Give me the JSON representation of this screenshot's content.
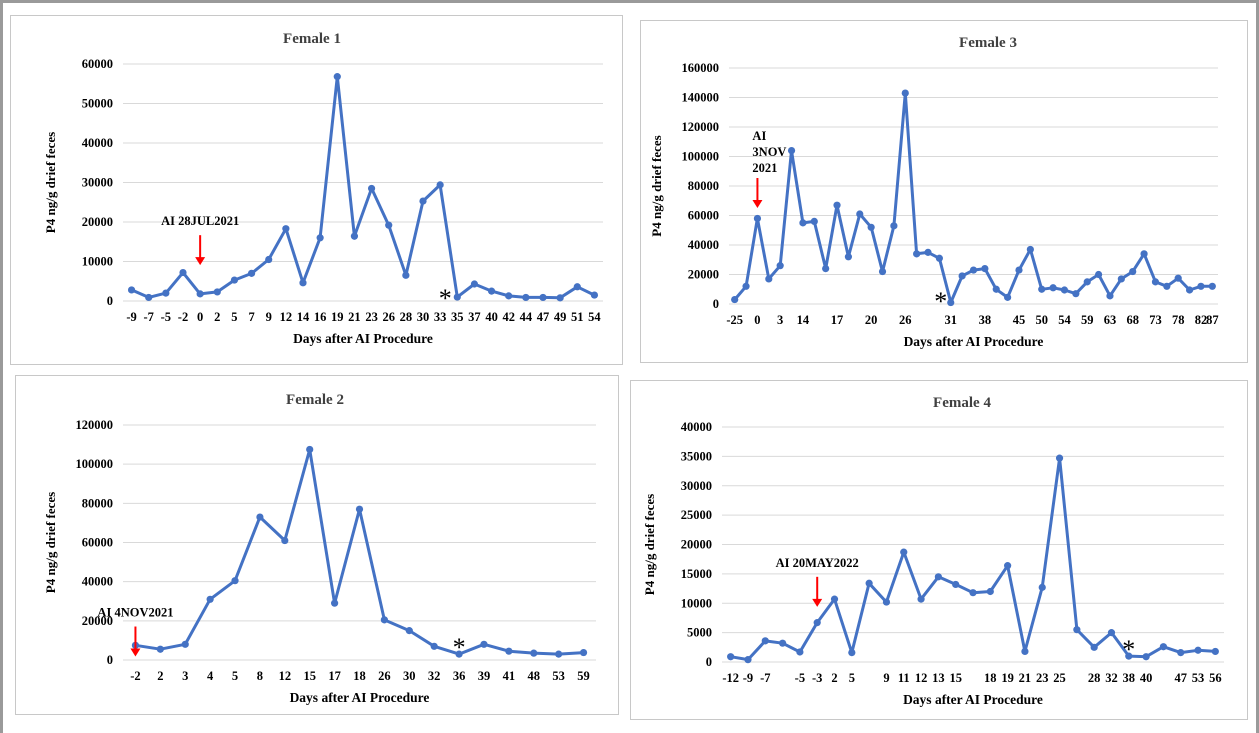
{
  "colors": {
    "line": "#4472C4",
    "grid": "#d9d9d9",
    "arrow": "#ff0000",
    "text": "#404040"
  },
  "charts": [
    {
      "type": "line",
      "title": "Female 1",
      "ylabel": "P4 ng/g drief feces",
      "xlabel": "Days after AI Procedure",
      "ylim": [
        0,
        60000
      ],
      "yticks": [
        0,
        10000,
        20000,
        30000,
        40000,
        50000,
        60000
      ],
      "categories": [
        "-9",
        "-7",
        "-5",
        "-2",
        "0",
        "2",
        "5",
        "7",
        "9",
        "12",
        "14",
        "16",
        "19",
        "21",
        "23",
        "26",
        "28",
        "30",
        "33",
        "35",
        "37",
        "40",
        "42",
        "44",
        "47",
        "49",
        "51",
        "54"
      ],
      "values": [
        2800,
        900,
        2000,
        7200,
        1800,
        2300,
        5300,
        7000,
        10500,
        18300,
        4600,
        16000,
        56800,
        16400,
        28500,
        19200,
        6500,
        25300,
        29400,
        1000,
        4300,
        2500,
        1300,
        900,
        900,
        800,
        3600,
        1500
      ],
      "annotation": {
        "text": "AI 28JUL2021",
        "at": "0"
      },
      "marker": {
        "text": "*",
        "at": "35"
      }
    },
    {
      "type": "line",
      "title": "Female 3",
      "ylabel": "P4 ng/g drief feces",
      "xlabel": "Days after AI Procedure",
      "ylim": [
        0,
        160000
      ],
      "yticks": [
        0,
        20000,
        40000,
        60000,
        80000,
        100000,
        120000,
        140000,
        160000
      ],
      "tick_labels": [
        "-25",
        "0",
        "3",
        "14",
        "17",
        "20",
        "26",
        "31",
        "38",
        "45",
        "50",
        "54",
        "59",
        "63",
        "68",
        "73",
        "78",
        "82",
        "87"
      ],
      "x": [
        -25,
        -24,
        0,
        1,
        3,
        4,
        14,
        15,
        16,
        17,
        18,
        19,
        20,
        21,
        25,
        26,
        27,
        28,
        29,
        31,
        33,
        36,
        38,
        40,
        43,
        45,
        48,
        50,
        52,
        54,
        57,
        59,
        61,
        63,
        65,
        68,
        71,
        73,
        75,
        77,
        80,
        82,
        85
      ],
      "values": [
        3000,
        12000,
        58000,
        17000,
        26000,
        104000,
        55000,
        56000,
        24000,
        67000,
        32000,
        61000,
        52000,
        22000,
        53000,
        143000,
        34000,
        35000,
        31000,
        1000,
        19000,
        23000,
        24000,
        10000,
        4500,
        23000,
        37000,
        10000,
        11000,
        9500,
        7000,
        15000,
        20000,
        5500,
        17000,
        22000,
        34000,
        15000,
        12000,
        17500,
        9500,
        12000,
        12000
      ],
      "annotation": {
        "text": "AI\n3NOV\n2021",
        "at": 0
      },
      "marker": {
        "text": "*",
        "at": 31
      }
    },
    {
      "type": "line",
      "title": "Female 2",
      "ylabel": "P4 ng/g drief feces",
      "xlabel": "Days after AI Procedure",
      "ylim": [
        0,
        120000
      ],
      "yticks": [
        0,
        20000,
        40000,
        60000,
        80000,
        100000,
        120000
      ],
      "categories": [
        "-2",
        "2",
        "3",
        "4",
        "5",
        "8",
        "12",
        "15",
        "17",
        "18",
        "26",
        "30",
        "32",
        "36",
        "39",
        "41",
        "48",
        "53",
        "59"
      ],
      "values": [
        7500,
        5500,
        8000,
        31000,
        40500,
        73000,
        61000,
        107500,
        29000,
        77000,
        20500,
        15000,
        7000,
        3000,
        8000,
        4500,
        3500,
        3000,
        3800
      ],
      "annotation": {
        "text": "AI 4NOV2021",
        "at": "-2"
      },
      "marker": {
        "text": "*",
        "at": "36"
      }
    },
    {
      "type": "line",
      "title": "Female 4",
      "ylabel": "P4 ng/g drief feces",
      "xlabel": "Days after AI Procedure",
      "ylim": [
        0,
        40000
      ],
      "yticks": [
        0,
        5000,
        10000,
        15000,
        20000,
        25000,
        30000,
        35000,
        40000
      ],
      "tick_labels": [
        "-12",
        "-9",
        "-7",
        "-5",
        "-3",
        "2",
        "5",
        "9",
        "11",
        "12",
        "13",
        "15",
        "18",
        "19",
        "21",
        "23",
        "25",
        "28",
        "32",
        "38",
        "40",
        "47",
        "53",
        "56"
      ],
      "values": [
        900,
        400,
        3600,
        3200,
        1700,
        6700,
        10700,
        1600,
        13400,
        10200,
        18700,
        10700,
        14500,
        13200,
        11800,
        12000,
        16400,
        1800,
        12700,
        34700,
        5500,
        2500,
        5000,
        1000,
        900,
        2600,
        1600,
        2000,
        1800
      ],
      "annotation": {
        "text": "AI 20MAY2022",
        "at": 5
      },
      "marker": {
        "text": "*",
        "at": 23
      }
    }
  ]
}
